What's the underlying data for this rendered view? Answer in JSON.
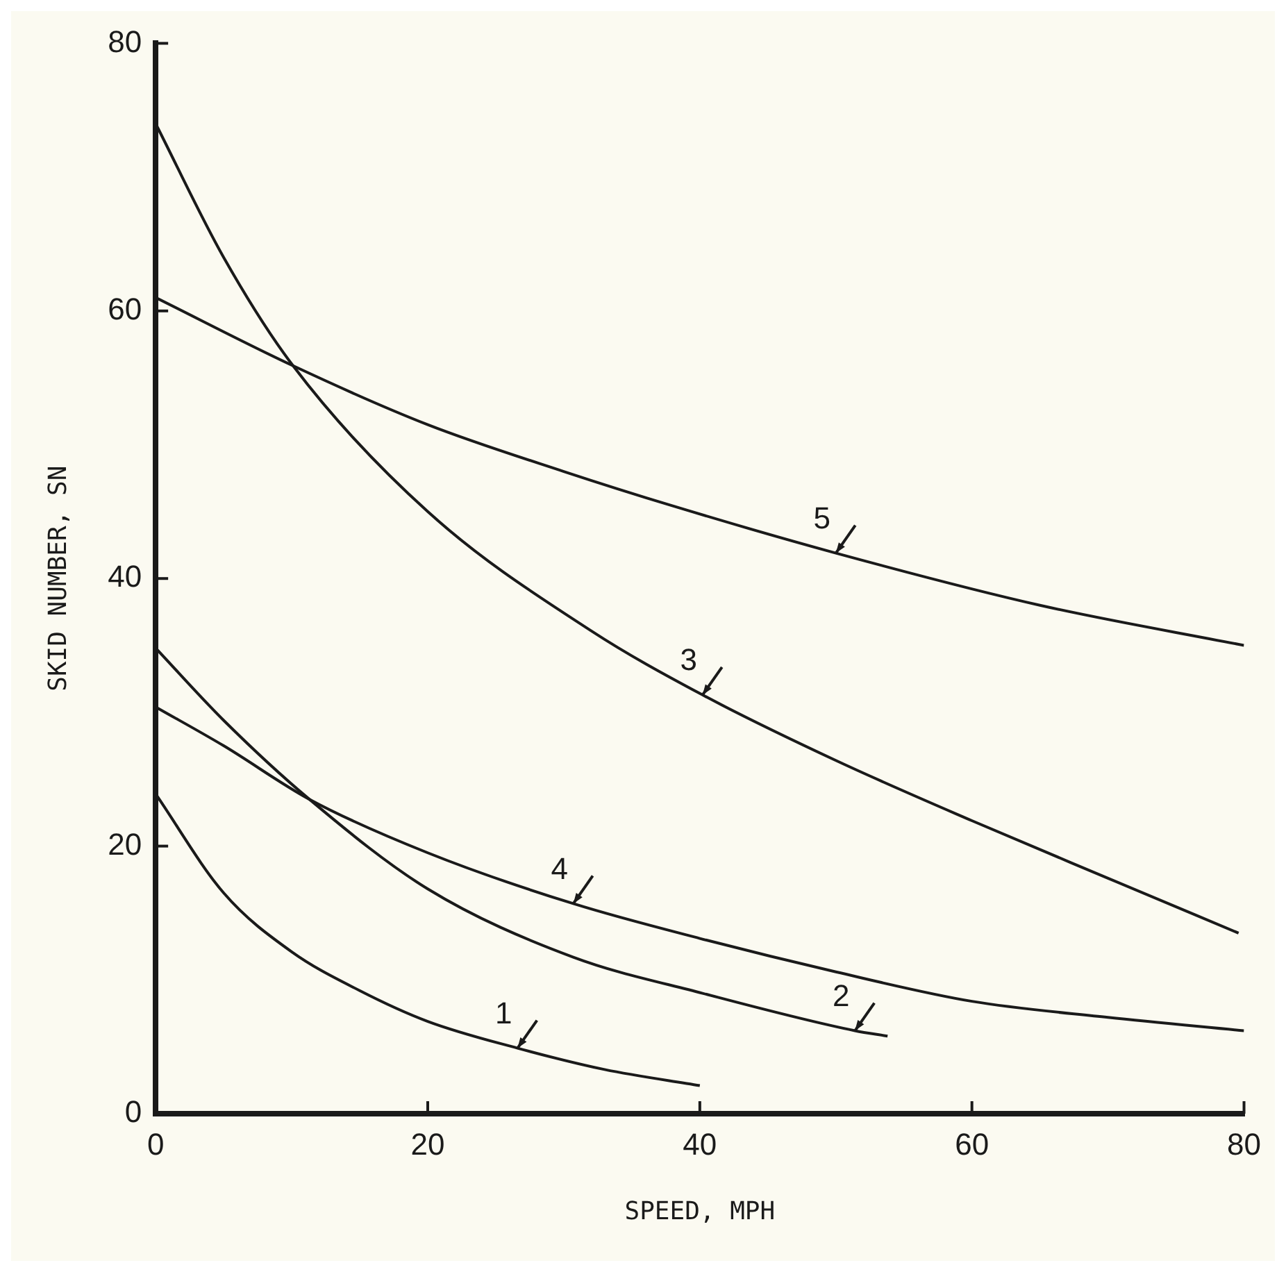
{
  "chart_data": {
    "type": "line",
    "xlabel": "SPEED, MPH",
    "ylabel": "SKID NUMBER, SN",
    "xlim": [
      0,
      80
    ],
    "ylim": [
      0,
      80
    ],
    "xticks": [
      0,
      20,
      40,
      60,
      80
    ],
    "yticks": [
      0,
      20,
      40,
      60,
      80
    ],
    "grid": false,
    "legend": false,
    "marker": "none",
    "line_style": "solid",
    "series": [
      {
        "color": "#1a1a1a",
        "x": [
          0,
          5,
          10,
          15,
          20,
          26.6,
          33,
          40
        ],
        "values": [
          23.9,
          16.5,
          12.1,
          9.2,
          6.9,
          4.9,
          3.3,
          2.1
        ]
      },
      {
        "color": "#1a1a1a",
        "x": [
          0,
          5,
          11.3,
          20,
          30.7,
          40.2,
          51.4,
          53.8
        ],
        "values": [
          34.8,
          29.4,
          23.5,
          16.8,
          11.7,
          9,
          6.2,
          5.8
        ]
      },
      {
        "color": "#1a1a1a",
        "x": [
          0,
          5,
          10.1,
          20,
          32,
          40.2,
          50,
          60,
          70,
          79.6
        ],
        "values": [
          74,
          64,
          55.9,
          45,
          36.1,
          31.3,
          26.4,
          21.9,
          17.6,
          13.5
        ]
      },
      {
        "color": "#1a1a1a",
        "x": [
          0,
          5,
          11.3,
          20,
          30.7,
          40,
          50,
          60,
          70,
          80
        ],
        "values": [
          30.4,
          27.5,
          23.5,
          19.5,
          15.7,
          13.1,
          10.6,
          8.4,
          7.2,
          6.2
        ]
      },
      {
        "color": "#1a1a1a",
        "x": [
          0,
          10.1,
          20,
          30,
          38.1,
          50,
          65,
          80
        ],
        "values": [
          61,
          55.9,
          51.5,
          48,
          45.4,
          41.9,
          38,
          35
        ]
      }
    ],
    "annotations": [
      {
        "text": "1",
        "x": 26.6,
        "y": 4.9
      },
      {
        "text": "2",
        "x": 51.4,
        "y": 6.2
      },
      {
        "text": "3",
        "x": 40.2,
        "y": 31.3
      },
      {
        "text": "4",
        "x": 30.7,
        "y": 15.7
      },
      {
        "text": "5",
        "x": 50,
        "y": 41.9
      }
    ]
  }
}
